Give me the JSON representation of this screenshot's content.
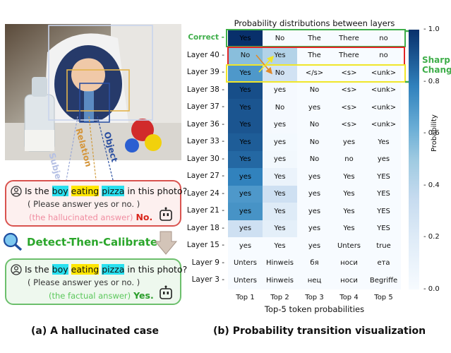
{
  "left": {
    "photo_alt": "",
    "labels": {
      "subject": "Subject",
      "relation": "Relation",
      "object": "Object"
    },
    "question": {
      "prefix": "Is the",
      "boy": "boy",
      "eating": "eating",
      "pizza": "pizza",
      "suffix": "in this photo?",
      "instruction": "( Please answer yes or no. )"
    },
    "hallucinated": {
      "note": "(the hallucinated answer)",
      "answer": "No."
    },
    "factual": {
      "note": "(the factual answer)",
      "answer": "Yes."
    },
    "method_label": "Detect-Then-Calibrate",
    "caption": "(a) A hallucinated case"
  },
  "right": {
    "caption": "(b) Probability transition visualization",
    "sharp_change": "Sharp\nChange!"
  },
  "chart_data": {
    "type": "heatmap",
    "title": "Probability distributions between layers",
    "xlabel": "Top-5 token probabilities",
    "colorbar_label": "Probability",
    "colorbar_range": [
      0.0,
      1.0
    ],
    "colorbar_ticks": [
      "0.0",
      "0.2",
      "0.4",
      "0.6",
      "0.8",
      "1.0"
    ],
    "columns": [
      "Top 1",
      "Top 2",
      "Top 3",
      "Top 4",
      "Top 5"
    ],
    "rows": [
      {
        "label": "Correct",
        "tokens": [
          "Yes",
          "No",
          "The",
          "There",
          "no"
        ],
        "probs": [
          1.0,
          0.0,
          0.0,
          0.0,
          0.0
        ]
      },
      {
        "label": "Layer 40",
        "tokens": [
          "No",
          "Yes",
          "The",
          "There",
          "no"
        ],
        "probs": [
          0.55,
          0.42,
          0.0,
          0.0,
          0.0
        ]
      },
      {
        "label": "Layer 39",
        "tokens": [
          "Yes",
          "No",
          "</s>",
          "<s>",
          "<unk>"
        ],
        "probs": [
          0.7,
          0.28,
          0.0,
          0.0,
          0.0
        ]
      },
      {
        "label": "Layer 38",
        "tokens": [
          "Yes",
          "yes",
          "No",
          "<s>",
          "<unk>"
        ],
        "probs": [
          0.92,
          0.02,
          0.0,
          0.0,
          0.0
        ]
      },
      {
        "label": "Layer 37",
        "tokens": [
          "Yes",
          "No",
          "yes",
          "<s>",
          "<unk>"
        ],
        "probs": [
          0.9,
          0.02,
          0.0,
          0.0,
          0.0
        ]
      },
      {
        "label": "Layer 36",
        "tokens": [
          "Yes",
          "yes",
          "No",
          "<s>",
          "<unk>"
        ],
        "probs": [
          0.9,
          0.02,
          0.0,
          0.0,
          0.0
        ]
      },
      {
        "label": "Layer 33",
        "tokens": [
          "Yes",
          "yes",
          "No",
          "yes",
          "Yes"
        ],
        "probs": [
          0.88,
          0.03,
          0.0,
          0.0,
          0.0
        ]
      },
      {
        "label": "Layer 30",
        "tokens": [
          "Yes",
          "yes",
          "No",
          "no",
          "yes"
        ],
        "probs": [
          0.85,
          0.04,
          0.0,
          0.0,
          0.0
        ]
      },
      {
        "label": "Layer 27",
        "tokens": [
          "yes",
          "Yes",
          "yes",
          "Yes",
          "YES"
        ],
        "probs": [
          0.78,
          0.1,
          0.0,
          0.0,
          0.0
        ]
      },
      {
        "label": "Layer 24",
        "tokens": [
          "yes",
          "Yes",
          "yes",
          "Yes",
          "YES"
        ],
        "probs": [
          0.7,
          0.3,
          0.0,
          0.0,
          0.0
        ]
      },
      {
        "label": "Layer 21",
        "tokens": [
          "yes",
          "Yes",
          "yes",
          "Yes",
          "YES"
        ],
        "probs": [
          0.72,
          0.2,
          0.0,
          0.0,
          0.0
        ]
      },
      {
        "label": "Layer 18",
        "tokens": [
          "yes",
          "Yes",
          "yes",
          "Yes",
          "YES"
        ],
        "probs": [
          0.3,
          0.15,
          0.0,
          0.0,
          0.0
        ]
      },
      {
        "label": "Layer 15",
        "tokens": [
          "yes",
          "Yes",
          "yes",
          "Unters",
          "true"
        ],
        "probs": [
          0.0,
          0.0,
          0.0,
          0.0,
          0.0
        ]
      },
      {
        "label": "Layer 9",
        "tokens": [
          "Unters",
          "Hinweis",
          "бя",
          "носи",
          "ета"
        ],
        "probs": [
          0.0,
          0.0,
          0.0,
          0.0,
          0.0
        ]
      },
      {
        "label": "Layer 3",
        "tokens": [
          "Unters",
          "Hinweis",
          "нец",
          "носи",
          "Begriffe"
        ],
        "probs": [
          0.0,
          0.0,
          0.0,
          0.0,
          0.0
        ]
      }
    ]
  }
}
